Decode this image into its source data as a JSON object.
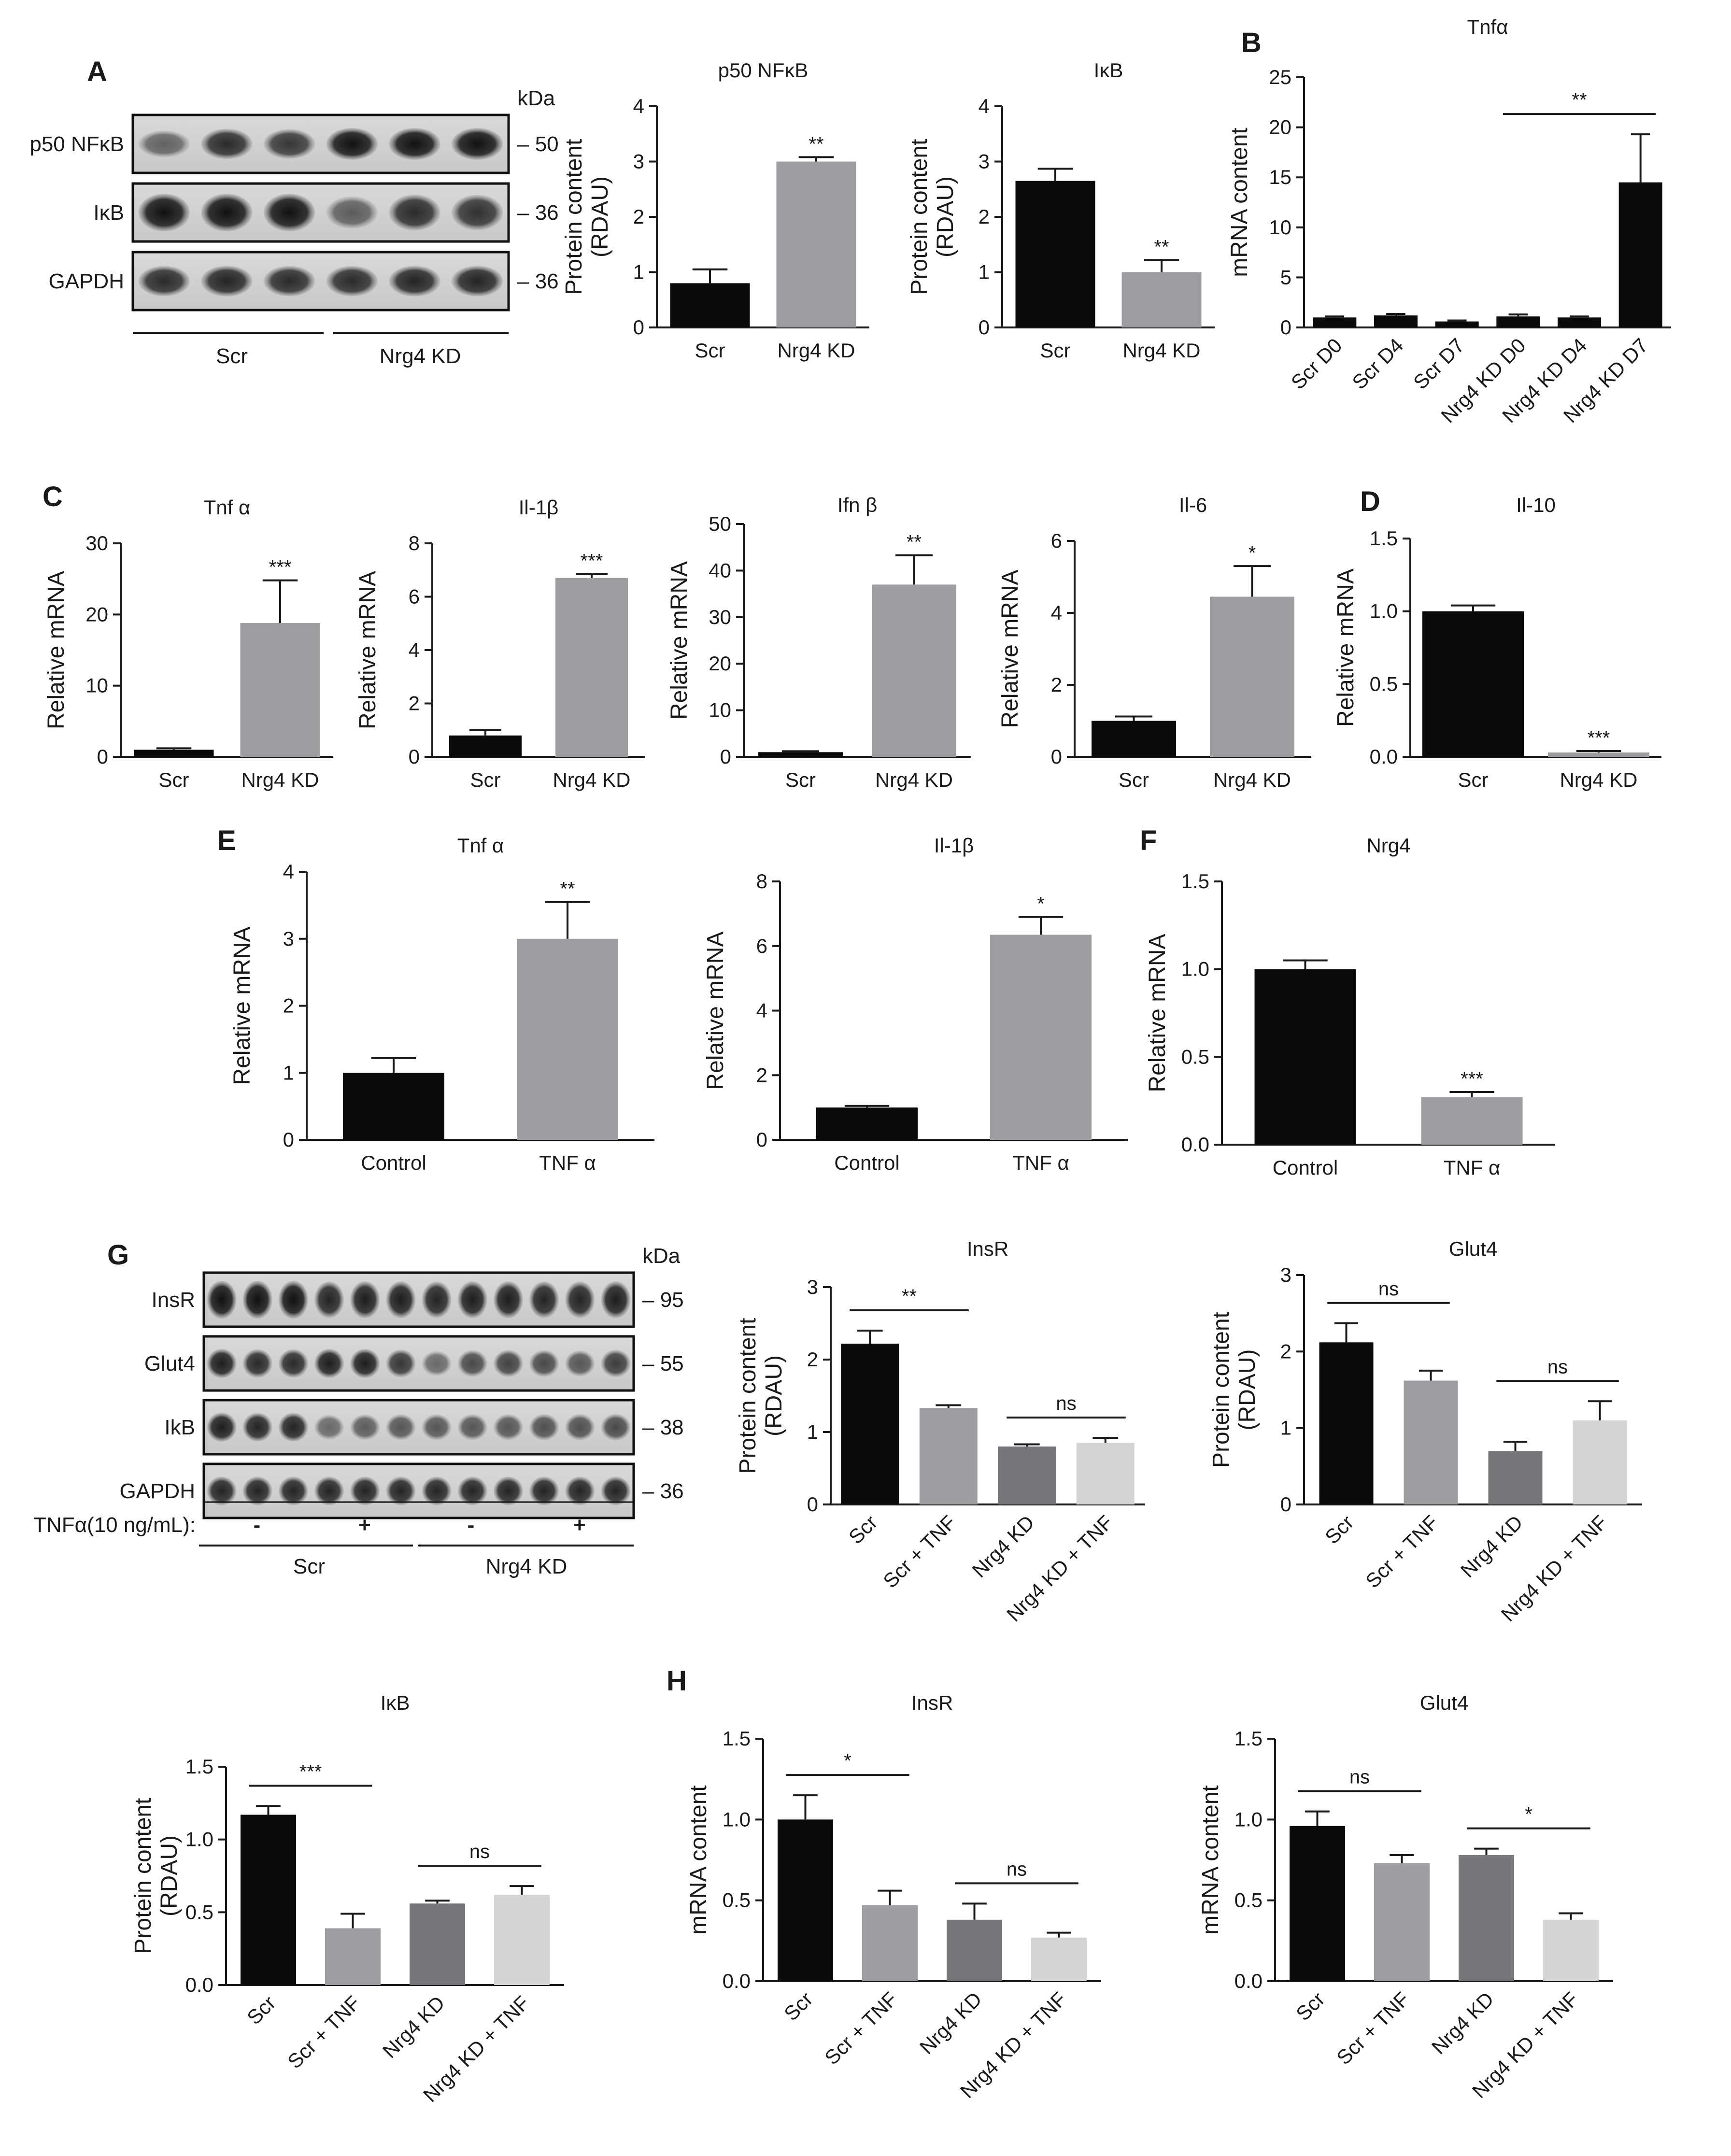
{
  "panel_letters": [
    "A",
    "B",
    "C",
    "D",
    "E",
    "F",
    "G",
    "H"
  ],
  "colors": {
    "black": "#0a0a0a",
    "gray": "#9e9ea2",
    "dark_gray": "#77777b",
    "light_gray": "#d4d4d6",
    "axis": "#1a1a1a"
  },
  "blots": {
    "A": {
      "rows": [
        {
          "label": "p50 NFκB",
          "kda": "50"
        },
        {
          "label": "IκB",
          "kda": "36"
        },
        {
          "label": "GAPDH",
          "kda": "36"
        }
      ],
      "kda_header": "kDa",
      "groups": [
        {
          "label": "Scr"
        },
        {
          "label": "Nrg4 KD"
        }
      ]
    },
    "G": {
      "rows": [
        {
          "label": "InsR",
          "kda": "95"
        },
        {
          "label": "Glut4",
          "kda": "55"
        },
        {
          "label": "IkB",
          "kda": "38"
        },
        {
          "label": "GAPDH",
          "kda": "36"
        }
      ],
      "kda_header": "kDa",
      "treatment_label": "TNFα(10 ng/mL):",
      "treatment_marks": [
        "-",
        "+",
        "-",
        "+"
      ],
      "groups": [
        {
          "label": "Scr"
        },
        {
          "label": "Nrg4 KD"
        }
      ]
    }
  },
  "chart_data": [
    {
      "id": "A-p50",
      "panel": "A",
      "type": "bar",
      "title": "p50 NFκB",
      "ylabel": "Protein content\n(RDAU)",
      "xlabel": "",
      "categories": [
        "Scr",
        "Nrg4 KD"
      ],
      "values": [
        0.8,
        3.0
      ],
      "errors": [
        0.25,
        0.08
      ],
      "bar_colors": [
        "black",
        "gray"
      ],
      "ylim": [
        0,
        4
      ],
      "yticks": [
        "0",
        "1",
        "2",
        "3",
        "4"
      ],
      "annotations": [
        {
          "text": "**",
          "bar": 1
        }
      ]
    },
    {
      "id": "A-IkB",
      "panel": "A",
      "type": "bar",
      "title": "IκB",
      "ylabel": "Protein content\n(RDAU)",
      "xlabel": "",
      "categories": [
        "Scr",
        "Nrg4 KD"
      ],
      "values": [
        2.65,
        1.0
      ],
      "errors": [
        0.22,
        0.22
      ],
      "bar_colors": [
        "black",
        "gray"
      ],
      "ylim": [
        0,
        4
      ],
      "yticks": [
        "0",
        "1",
        "2",
        "3",
        "4"
      ],
      "annotations": [
        {
          "text": "**",
          "bar": 1
        }
      ]
    },
    {
      "id": "B-Tnfa",
      "panel": "B",
      "type": "bar",
      "title": "Tnfα",
      "ylabel": "mRNA content",
      "xlabel": "",
      "categories": [
        "Scr D0",
        "Scr D4",
        "Scr D7",
        "Nrg4 KD D0",
        "Nrg4 KD D4",
        "Nrg4 KD D7"
      ],
      "values": [
        1.0,
        1.2,
        0.6,
        1.1,
        1.0,
        14.5
      ],
      "errors": [
        0.1,
        0.15,
        0.1,
        0.2,
        0.1,
        4.8
      ],
      "bar_colors": [
        "black",
        "black",
        "black",
        "black",
        "black",
        "black"
      ],
      "ylim": [
        0,
        25
      ],
      "yticks": [
        "0",
        "5",
        "10",
        "15",
        "20",
        "25"
      ],
      "brackets": [
        {
          "from": 3,
          "to": 5,
          "text": "**"
        }
      ]
    },
    {
      "id": "C-Tnfa",
      "panel": "C",
      "type": "bar",
      "title": "Tnf α",
      "ylabel": "Relative mRNA",
      "xlabel": "",
      "categories": [
        "Scr",
        "Nrg4 KD"
      ],
      "values": [
        1.0,
        18.8
      ],
      "errors": [
        0.2,
        6.0
      ],
      "bar_colors": [
        "black",
        "gray"
      ],
      "ylim": [
        0,
        30
      ],
      "yticks": [
        "0",
        "10",
        "20",
        "30"
      ],
      "annotations": [
        {
          "text": "***",
          "bar": 1
        }
      ]
    },
    {
      "id": "C-Il1b",
      "panel": "C",
      "type": "bar",
      "title": "Il-1β",
      "ylabel": "Relative mRNA",
      "xlabel": "",
      "categories": [
        "Scr",
        "Nrg4 KD"
      ],
      "values": [
        0.8,
        6.7
      ],
      "errors": [
        0.2,
        0.15
      ],
      "bar_colors": [
        "black",
        "gray"
      ],
      "ylim": [
        0,
        8
      ],
      "yticks": [
        "0",
        "2",
        "4",
        "6",
        "8"
      ],
      "annotations": [
        {
          "text": "***",
          "bar": 1
        }
      ]
    },
    {
      "id": "C-Ifnb",
      "panel": "C",
      "type": "bar",
      "title": "Ifn β",
      "ylabel": "Relative mRNA",
      "xlabel": "",
      "categories": [
        "Scr",
        "Nrg4 KD"
      ],
      "values": [
        1.0,
        37.0
      ],
      "errors": [
        0.2,
        6.3
      ],
      "bar_colors": [
        "black",
        "gray"
      ],
      "ylim": [
        0,
        50
      ],
      "yticks": [
        "0",
        "10",
        "20",
        "30",
        "40",
        "50"
      ],
      "annotations": [
        {
          "text": "**",
          "bar": 1
        }
      ]
    },
    {
      "id": "C-Il6",
      "panel": "C",
      "type": "bar",
      "title": "Il-6",
      "ylabel": "Relative mRNA",
      "xlabel": "",
      "categories": [
        "Scr",
        "Nrg4 KD"
      ],
      "values": [
        1.0,
        4.45
      ],
      "errors": [
        0.12,
        0.85
      ],
      "bar_colors": [
        "black",
        "gray"
      ],
      "ylim": [
        0,
        6
      ],
      "yticks": [
        "0",
        "2",
        "4",
        "6"
      ],
      "annotations": [
        {
          "text": "*",
          "bar": 1
        }
      ]
    },
    {
      "id": "D-Il10",
      "panel": "D",
      "type": "bar",
      "title": "Il-10",
      "ylabel": "Relative mRNA",
      "xlabel": "",
      "categories": [
        "Scr",
        "Nrg4 KD"
      ],
      "values": [
        1.0,
        0.03
      ],
      "errors": [
        0.04,
        0.01
      ],
      "bar_colors": [
        "black",
        "gray"
      ],
      "ylim": [
        0,
        1.5
      ],
      "yticks": [
        "0.0",
        "0.5",
        "1.0",
        "1.5"
      ],
      "annotations": [
        {
          "text": "***",
          "bar": 1
        }
      ]
    },
    {
      "id": "E-Tnfa",
      "panel": "E",
      "type": "bar",
      "title": "Tnf α",
      "ylabel": "Relative mRNA",
      "xlabel": "",
      "categories": [
        "Control",
        "TNF α"
      ],
      "values": [
        1.0,
        3.0
      ],
      "errors": [
        0.22,
        0.55
      ],
      "bar_colors": [
        "black",
        "gray"
      ],
      "ylim": [
        0,
        4
      ],
      "yticks": [
        "0",
        "1",
        "2",
        "3",
        "4"
      ],
      "annotations": [
        {
          "text": "**",
          "bar": 1
        }
      ]
    },
    {
      "id": "E-Il1b",
      "panel": "E",
      "type": "bar",
      "title": "Il-1β",
      "ylabel": "Relative mRNA",
      "xlabel": "",
      "categories": [
        "Control",
        "TNF α"
      ],
      "values": [
        1.0,
        6.35
      ],
      "errors": [
        0.05,
        0.55
      ],
      "bar_colors": [
        "black",
        "gray"
      ],
      "ylim": [
        0,
        8
      ],
      "yticks": [
        "0",
        "2",
        "4",
        "6",
        "8"
      ],
      "annotations": [
        {
          "text": "*",
          "bar": 1
        }
      ]
    },
    {
      "id": "F-Nrg4",
      "panel": "F",
      "type": "bar",
      "title": "Nrg4",
      "ylabel": "Relative mRNA",
      "xlabel": "",
      "categories": [
        "Control",
        "TNF α"
      ],
      "values": [
        1.0,
        0.27
      ],
      "errors": [
        0.05,
        0.03
      ],
      "bar_colors": [
        "black",
        "gray"
      ],
      "ylim": [
        0,
        1.5
      ],
      "yticks": [
        "0.0",
        "0.5",
        "1.0",
        "1.5"
      ],
      "annotations": [
        {
          "text": "***",
          "bar": 1
        }
      ]
    },
    {
      "id": "G-InsR",
      "panel": "G",
      "type": "bar",
      "title": "InsR",
      "ylabel": "Protein content\n(RDAU)",
      "xlabel": "",
      "categories": [
        "Scr",
        "Scr + TNF",
        "Nrg4 KD",
        "Nrg4 KD + TNF"
      ],
      "values": [
        2.22,
        1.33,
        0.8,
        0.85
      ],
      "errors": [
        0.18,
        0.04,
        0.03,
        0.07
      ],
      "bar_colors": [
        "black",
        "gray",
        "dark_gray",
        "light_gray"
      ],
      "ylim": [
        0,
        3
      ],
      "yticks": [
        "0",
        "1",
        "2",
        "3"
      ],
      "brackets": [
        {
          "from": 0,
          "to": 1,
          "text": "**"
        },
        {
          "from": 2,
          "to": 3,
          "text": "ns"
        }
      ]
    },
    {
      "id": "G-Glut4",
      "panel": "G",
      "type": "bar",
      "title": "Glut4",
      "ylabel": "Protein content\n(RDAU)",
      "xlabel": "",
      "categories": [
        "Scr",
        "Scr + TNF",
        "Nrg4 KD",
        "Nrg4 KD + TNF"
      ],
      "values": [
        2.12,
        1.62,
        0.7,
        1.1
      ],
      "errors": [
        0.25,
        0.13,
        0.12,
        0.25
      ],
      "bar_colors": [
        "black",
        "gray",
        "dark_gray",
        "light_gray"
      ],
      "ylim": [
        0,
        3
      ],
      "yticks": [
        "0",
        "1",
        "2",
        "3"
      ],
      "brackets": [
        {
          "from": 0,
          "to": 1,
          "text": "ns"
        },
        {
          "from": 2,
          "to": 3,
          "text": "ns"
        }
      ]
    },
    {
      "id": "G-IkB",
      "panel": "G",
      "type": "bar",
      "title": "IκB",
      "ylabel": "Protein content\n(RDAU)",
      "xlabel": "",
      "categories": [
        "Scr",
        "Scr + TNF",
        "Nrg4 KD",
        "Nrg4 KD + TNF"
      ],
      "values": [
        1.17,
        0.39,
        0.56,
        0.62
      ],
      "errors": [
        0.06,
        0.1,
        0.02,
        0.06
      ],
      "bar_colors": [
        "black",
        "gray",
        "dark_gray",
        "light_gray"
      ],
      "ylim": [
        0,
        1.5
      ],
      "yticks": [
        "0.0",
        "0.5",
        "1.0",
        "1.5"
      ],
      "brackets": [
        {
          "from": 0,
          "to": 1,
          "text": "***"
        },
        {
          "from": 2,
          "to": 3,
          "text": "ns"
        }
      ]
    },
    {
      "id": "H-InsR",
      "panel": "H",
      "type": "bar",
      "title": "InsR",
      "ylabel": "mRNA content",
      "xlabel": "",
      "categories": [
        "Scr",
        "Scr + TNF",
        "Nrg4 KD",
        "Nrg4 KD + TNF"
      ],
      "values": [
        1.0,
        0.47,
        0.38,
        0.27
      ],
      "errors": [
        0.15,
        0.09,
        0.1,
        0.03
      ],
      "bar_colors": [
        "black",
        "gray",
        "dark_gray",
        "light_gray"
      ],
      "ylim": [
        0,
        1.5
      ],
      "yticks": [
        "0.0",
        "0.5",
        "1.0",
        "1.5"
      ],
      "brackets": [
        {
          "from": 0,
          "to": 1,
          "text": "*"
        },
        {
          "from": 2,
          "to": 3,
          "text": "ns"
        }
      ]
    },
    {
      "id": "H-Glut4",
      "panel": "H",
      "type": "bar",
      "title": "Glut4",
      "ylabel": "mRNA content",
      "xlabel": "",
      "categories": [
        "Scr",
        "Scr + TNF",
        "Nrg4 KD",
        "Nrg4 KD + TNF"
      ],
      "values": [
        0.96,
        0.73,
        0.78,
        0.38
      ],
      "errors": [
        0.09,
        0.05,
        0.04,
        0.04
      ],
      "bar_colors": [
        "black",
        "gray",
        "dark_gray",
        "light_gray"
      ],
      "ylim": [
        0,
        1.5
      ],
      "yticks": [
        "0.0",
        "0.5",
        "1.0",
        "1.5"
      ],
      "brackets": [
        {
          "from": 0,
          "to": 1,
          "text": "ns"
        },
        {
          "from": 2,
          "to": 3,
          "text": "*"
        }
      ]
    }
  ]
}
